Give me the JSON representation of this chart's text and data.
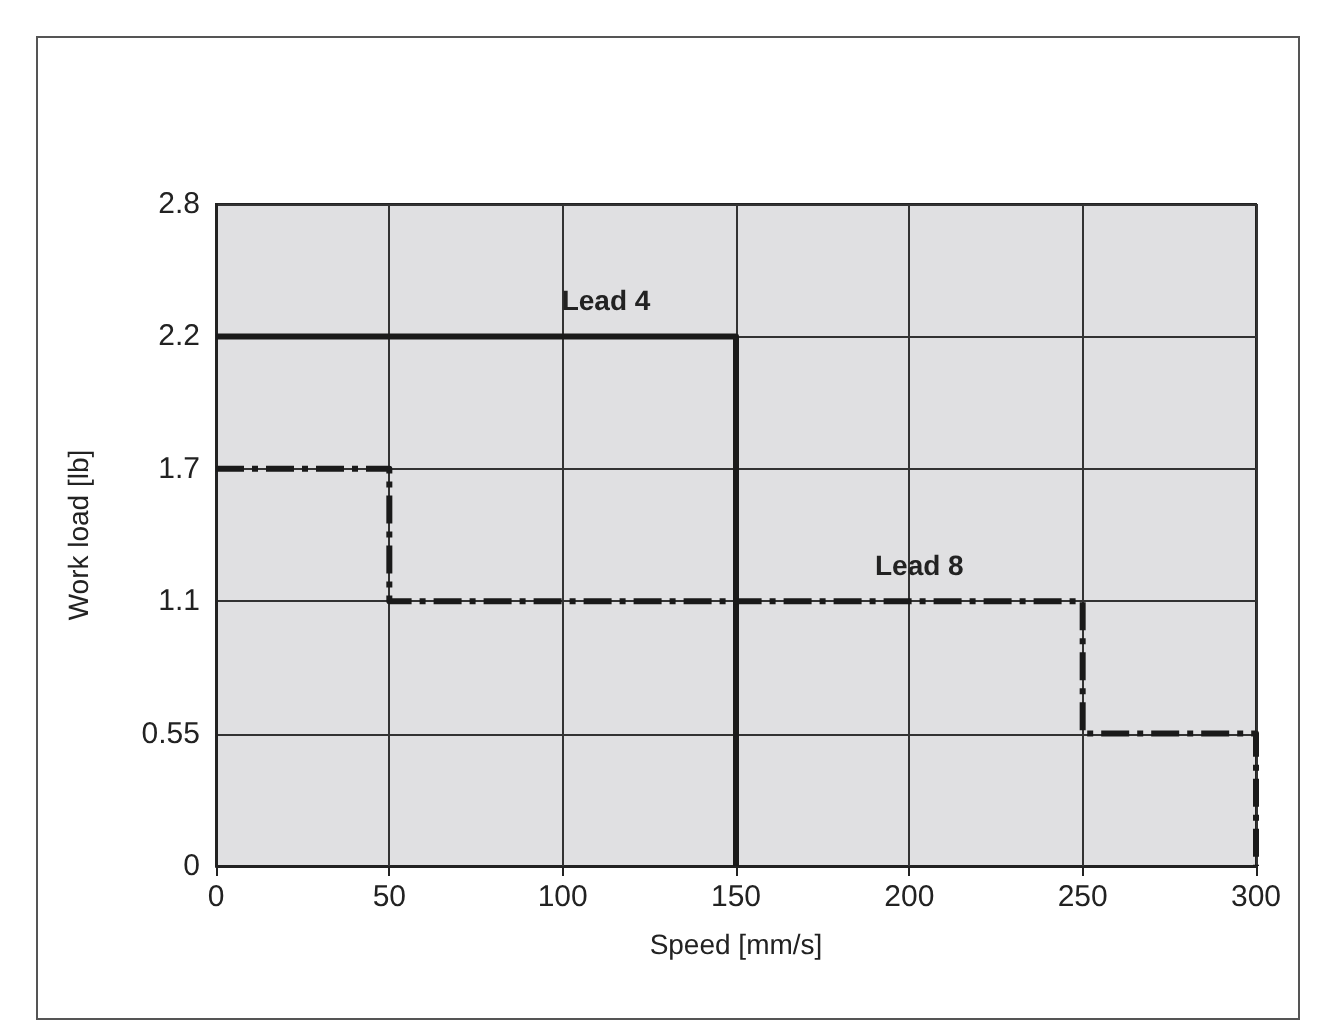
{
  "chart_data": {
    "type": "line",
    "xlabel": "Speed [mm/s]",
    "ylabel": "Work load [lb]",
    "xlim": [
      0,
      300
    ],
    "xticks": [
      0,
      50,
      100,
      150,
      200,
      250,
      300
    ],
    "ylim": [
      0,
      2.75
    ],
    "yticks": [
      0,
      0.55,
      1.1,
      {
        "value": 1.65,
        "label": "1.7"
      },
      2.2,
      {
        "value": 2.75,
        "label": "2.8"
      }
    ],
    "grid": true,
    "legend": false,
    "marker": "none",
    "series": [
      {
        "name": "Lead 4",
        "color": "#1a1a1a",
        "line_style": "solid",
        "x": [
          0,
          150,
          150
        ],
        "values": [
          2.2,
          2.2,
          0
        ]
      },
      {
        "name": "Lead 8",
        "color": "#1a1a1a",
        "line_style": "dashed",
        "x": [
          0,
          50,
          50,
          250,
          250,
          300,
          300
        ],
        "values": [
          1.65,
          1.65,
          1.1,
          1.1,
          0.55,
          0.55,
          0
        ]
      }
    ]
  }
}
